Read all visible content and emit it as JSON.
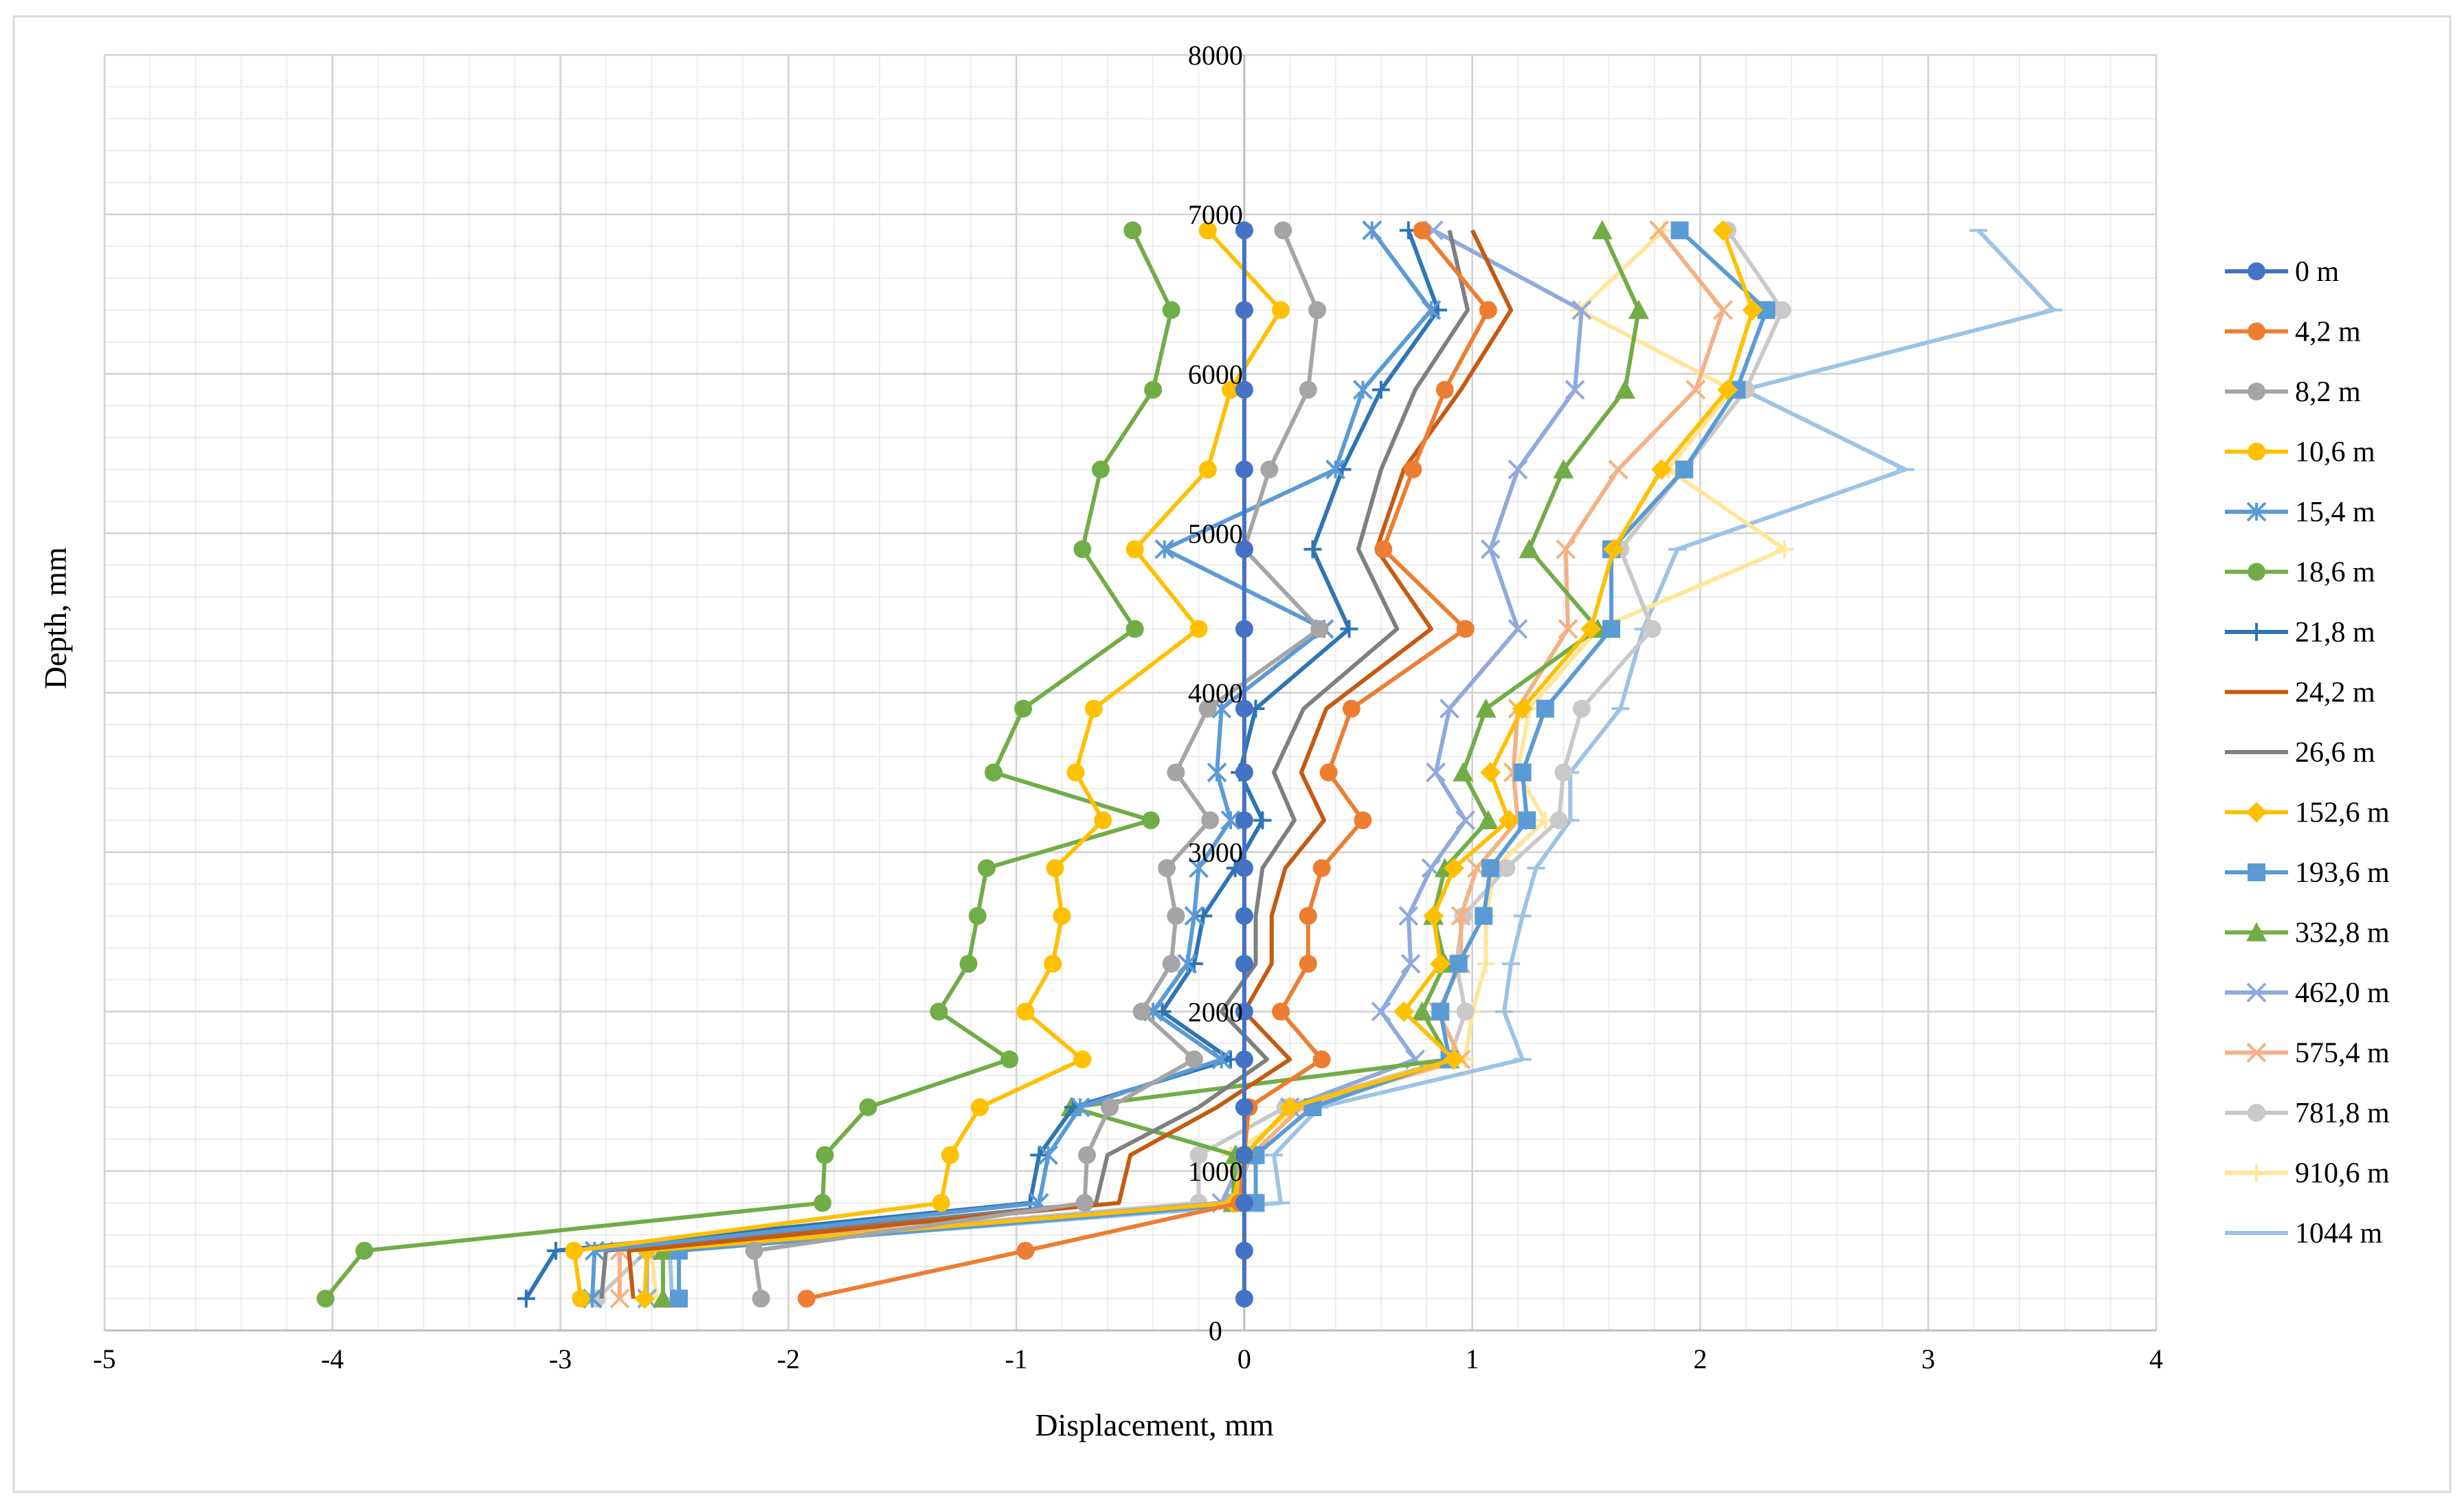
{
  "chart_data": {
    "type": "line",
    "title": "",
    "xlabel": "Displacement, mm",
    "ylabel": "Depth, mm",
    "xlim": [
      -5,
      4
    ],
    "ylim": [
      0,
      8000
    ],
    "xticks": [
      "-5",
      "-4",
      "-3",
      "-2",
      "-1",
      "0",
      "1",
      "2",
      "3",
      "4"
    ],
    "yticks": [
      "0",
      "1000",
      "2000",
      "3000",
      "4000",
      "5000",
      "6000",
      "7000",
      "8000"
    ],
    "grid": true,
    "legend_position": "right",
    "depths": [
      6900,
      6400,
      5900,
      5400,
      4900,
      4400,
      3900,
      3500,
      3200,
      2900,
      2600,
      2300,
      2000,
      1700,
      1400,
      1100,
      800,
      500,
      200
    ],
    "series": [
      {
        "name": "0 m",
        "color": "#4472C4",
        "marker": "circle",
        "values": [
          0,
          0,
          0,
          0,
          0,
          0,
          0,
          0,
          0,
          0,
          0,
          0,
          0,
          0,
          0,
          0,
          0,
          0,
          0
        ]
      },
      {
        "name": "4,2 m",
        "color": "#ED7D31",
        "marker": "circle",
        "values": [
          0.78,
          1.07,
          0.88,
          0.74,
          0.61,
          0.97,
          0.47,
          0.37,
          0.52,
          0.34,
          0.28,
          0.28,
          0.16,
          0.34,
          0.02,
          0,
          -0.02,
          -0.96,
          -1.92
        ]
      },
      {
        "name": "8,2 m",
        "color": "#A5A5A5",
        "marker": "circle",
        "values": [
          0.17,
          0.32,
          0.28,
          0.11,
          0,
          0.33,
          -0.16,
          -0.3,
          -0.15,
          -0.34,
          -0.3,
          -0.32,
          -0.45,
          -0.22,
          -0.59,
          -0.69,
          -0.7,
          -2.15,
          -2.12
        ]
      },
      {
        "name": "10,6 m",
        "color": "#FFC000",
        "marker": "circle",
        "values": [
          -0.16,
          0.16,
          -0.06,
          -0.16,
          -0.48,
          -0.2,
          -0.66,
          -0.74,
          -0.62,
          -0.83,
          -0.8,
          -0.84,
          -0.96,
          -0.71,
          -1.16,
          -1.29,
          -1.33,
          -2.94,
          -2.91
        ]
      },
      {
        "name": "15,4 m",
        "color": "#5B9BD5",
        "marker": "star",
        "values": [
          0.56,
          0.82,
          0.52,
          0.4,
          -0.35,
          0.35,
          -0.1,
          -0.12,
          -0.06,
          -0.2,
          -0.22,
          -0.25,
          -0.4,
          -0.1,
          -0.72,
          -0.86,
          -0.9,
          -2.85,
          -2.86
        ]
      },
      {
        "name": "18,6 m",
        "color": "#70AD47",
        "marker": "circle",
        "values": [
          -0.49,
          -0.32,
          -0.4,
          -0.63,
          -0.71,
          -0.48,
          -0.97,
          -1.1,
          -0.41,
          -1.13,
          -1.17,
          -1.21,
          -1.34,
          -1.03,
          -1.65,
          -1.84,
          -1.85,
          -3.86,
          -4.03
        ]
      },
      {
        "name": "21,8 m",
        "color": "#2E75B6",
        "marker": "plus",
        "values": [
          0.72,
          0.85,
          0.6,
          0.43,
          0.3,
          0.46,
          0.05,
          -0.02,
          0.08,
          -0.04,
          -0.18,
          -0.22,
          -0.36,
          -0.06,
          -0.75,
          -0.9,
          -0.94,
          -3.02,
          -3.15
        ]
      },
      {
        "name": "24,2 m",
        "color": "#C55A11",
        "marker": "line",
        "values": [
          1.0,
          1.17,
          0.95,
          0.7,
          0.58,
          0.82,
          0.36,
          0.25,
          0.35,
          0.18,
          0.12,
          0.12,
          0.0,
          0.2,
          -0.12,
          -0.5,
          -0.55,
          -2.7,
          -2.68
        ]
      },
      {
        "name": "26,6 m",
        "color": "#7F7F7F",
        "marker": "line",
        "values": [
          0.9,
          0.98,
          0.75,
          0.6,
          0.5,
          0.67,
          0.26,
          0.13,
          0.22,
          0.08,
          0.05,
          0.05,
          -0.1,
          0.1,
          -0.2,
          -0.6,
          -0.65,
          -2.8,
          -2.82
        ]
      },
      {
        "name": "152,6 m",
        "color": "#FFC000",
        "marker": "diamond",
        "values": [
          2.1,
          2.23,
          2.12,
          1.83,
          1.62,
          1.52,
          1.22,
          1.08,
          1.16,
          0.92,
          0.83,
          0.86,
          0.7,
          0.92,
          0.2,
          0.0,
          -0.05,
          -2.62,
          -2.63
        ]
      },
      {
        "name": "193,6 m",
        "color": "#5B9BD5",
        "marker": "square",
        "values": [
          1.91,
          2.29,
          2.16,
          1.93,
          1.61,
          1.61,
          1.32,
          1.22,
          1.24,
          1.08,
          1.05,
          0.94,
          0.86,
          0.9,
          0.3,
          0.05,
          0.05,
          -2.48,
          -2.48
        ]
      },
      {
        "name": "332,8 m",
        "color": "#70AD47",
        "marker": "triangle",
        "values": [
          1.57,
          1.73,
          1.67,
          1.4,
          1.25,
          1.55,
          1.06,
          0.96,
          1.07,
          0.88,
          0.83,
          0.88,
          0.78,
          0.9,
          -0.76,
          -0.04,
          -0.05,
          -2.55,
          -2.55
        ]
      },
      {
        "name": "462,0 m",
        "color": "#8FAADC",
        "marker": "cross",
        "values": [
          0.83,
          1.48,
          1.45,
          1.2,
          1.08,
          1.2,
          0.9,
          0.84,
          0.97,
          0.82,
          0.72,
          0.73,
          0.6,
          0.75,
          0.2,
          0.0,
          -0.1,
          -2.62,
          -2.62
        ]
      },
      {
        "name": "575,4 m",
        "color": "#F4B183",
        "marker": "cross",
        "values": [
          1.82,
          2.1,
          1.98,
          1.64,
          1.41,
          1.42,
          1.2,
          1.18,
          1.2,
          1.02,
          0.95,
          0.95,
          0.85,
          0.95,
          0.25,
          0.03,
          -0.05,
          -2.74,
          -2.74
        ]
      },
      {
        "name": "781,8 m",
        "color": "#C9C9C9",
        "marker": "circle",
        "values": [
          2.12,
          2.36,
          2.2,
          1.93,
          1.65,
          1.79,
          1.48,
          1.4,
          1.38,
          1.15,
          0.96,
          0.93,
          0.97,
          0.9,
          0.18,
          -0.2,
          -0.2,
          -2.62,
          -2.84
        ]
      },
      {
        "name": "910,6 m",
        "color": "#FFE699",
        "marker": "plus",
        "values": [
          1.84,
          1.47,
          2.14,
          1.86,
          2.37,
          1.55,
          1.25,
          1.2,
          1.32,
          1.1,
          1.06,
          1.06,
          1.0,
          0.97,
          0.25,
          -0.06,
          -0.04,
          -2.6,
          -2.58
        ]
      },
      {
        "name": "1044 m",
        "color": "#9DC3E6",
        "marker": "minus",
        "values": [
          3.22,
          3.55,
          2.19,
          2.9,
          1.9,
          1.75,
          1.65,
          1.43,
          1.43,
          1.28,
          1.22,
          1.17,
          1.14,
          1.22,
          0.33,
          0.13,
          0.16,
          -2.52,
          -2.51
        ]
      }
    ]
  }
}
